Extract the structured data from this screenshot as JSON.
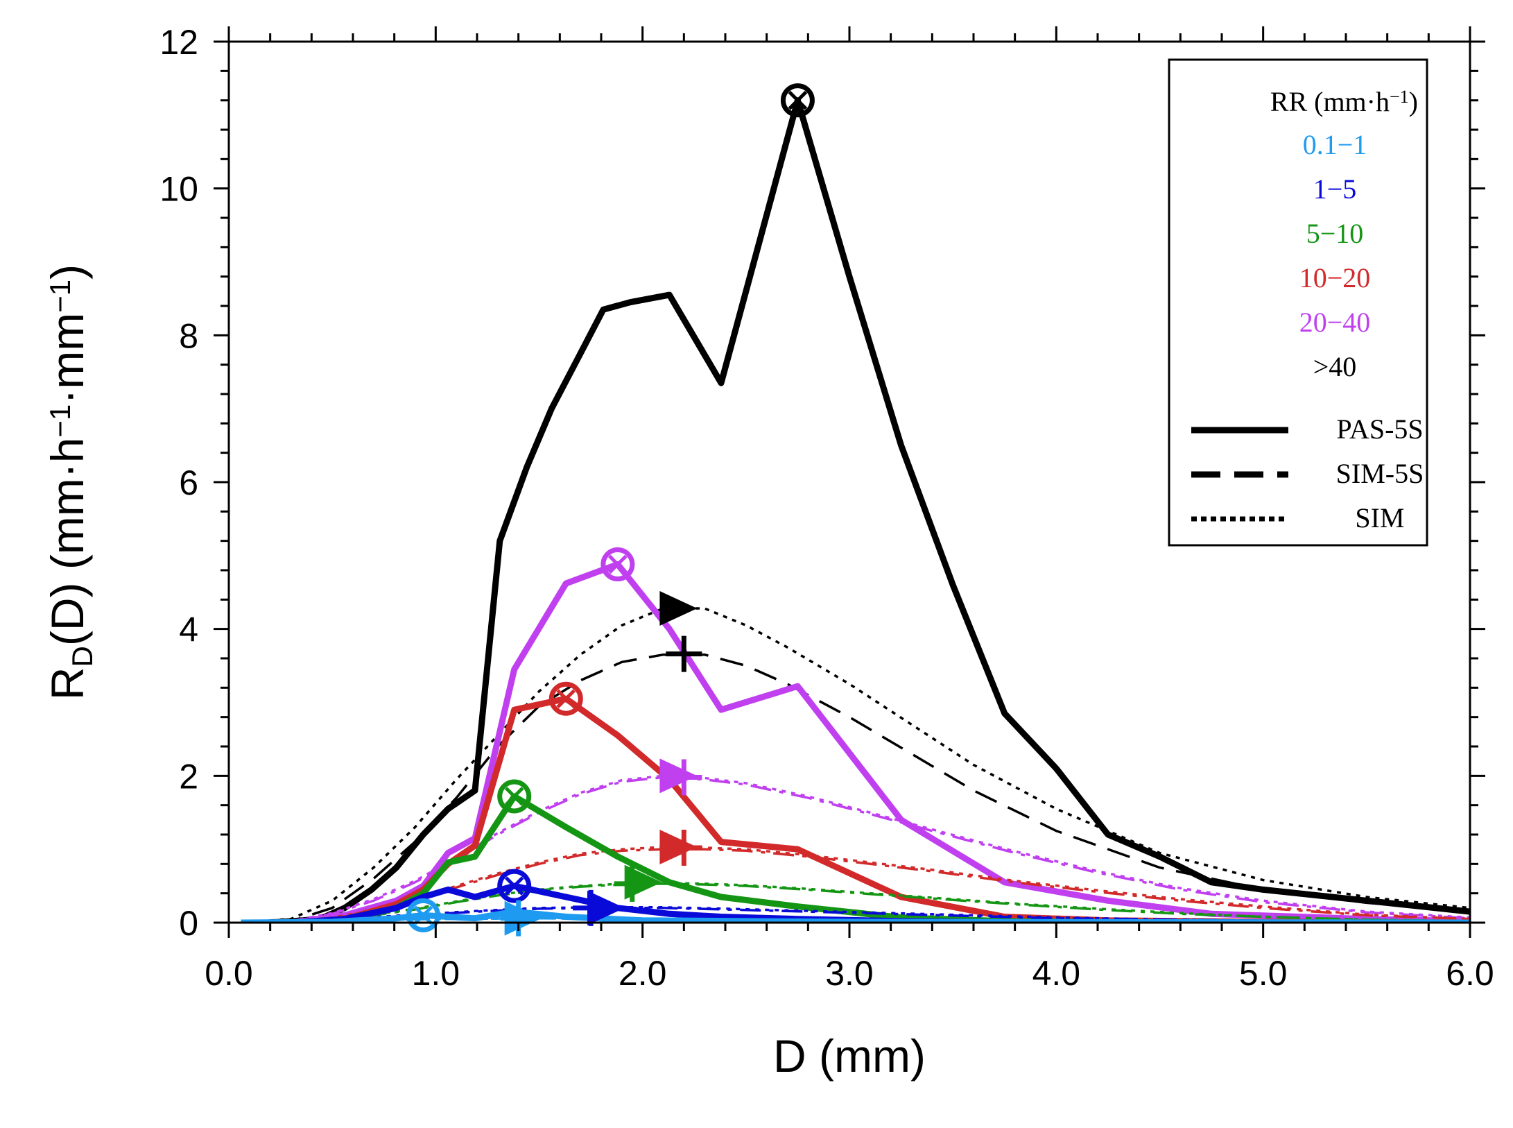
{
  "chart_data": {
    "type": "line",
    "title": "",
    "xlabel": "D (mm)",
    "ylabel_parts": [
      "R",
      "D",
      "(D) (mm·h",
      "−1",
      "·mm",
      "−1",
      ")"
    ],
    "xlim": [
      0,
      6
    ],
    "ylim": [
      0,
      12
    ],
    "x_ticks": [
      0,
      1,
      2,
      3,
      4,
      5,
      6
    ],
    "x_tick_labels": [
      "0.0",
      "1.0",
      "2.0",
      "3.0",
      "4.0",
      "5.0",
      "6.0"
    ],
    "y_ticks": [
      0,
      2,
      4,
      6,
      8,
      10,
      12
    ],
    "y_tick_labels": [
      "0",
      "2",
      "4",
      "6",
      "8",
      "10",
      "12"
    ],
    "grid": false,
    "legend": {
      "title": "RR (mm·h",
      "title_sup": "−1",
      "title_end": ")",
      "placement": "top-right",
      "classes": [
        {
          "label": "0.1−1",
          "color": "#1e9bf0"
        },
        {
          "label": "1−5",
          "color": "#0a0ad8"
        },
        {
          "label": "5−10",
          "color": "#149614"
        },
        {
          "label": "10−20",
          "color": "#d22a2a"
        },
        {
          "label": "20−40",
          "color": "#c040f0"
        },
        {
          "label": ">40",
          "color": "#000000"
        }
      ],
      "styles": [
        {
          "label": "PAS-5S",
          "dash": "solid"
        },
        {
          "label": "SIM-5S",
          "dash": "dash"
        },
        {
          "label": "SIM",
          "dash": "dot"
        }
      ]
    },
    "series": [
      {
        "name": ">40 PAS-5S",
        "color": "#000000",
        "style": "solid",
        "x": [
          0.06,
          0.19,
          0.31,
          0.44,
          0.56,
          0.69,
          0.81,
          0.94,
          1.06,
          1.19,
          1.31,
          1.44,
          1.56,
          1.69,
          1.81,
          1.94,
          2.13,
          2.38,
          2.75,
          3.0,
          3.25,
          3.5,
          3.75,
          4.0,
          4.25,
          4.5,
          4.75,
          5.0,
          5.5,
          6.0
        ],
        "y": [
          0,
          0,
          0.02,
          0.05,
          0.2,
          0.45,
          0.75,
          1.2,
          1.55,
          1.8,
          5.2,
          6.2,
          7.0,
          7.7,
          8.35,
          8.45,
          8.55,
          7.35,
          11.2,
          8.8,
          6.5,
          4.6,
          2.85,
          2.1,
          1.2,
          0.9,
          0.55,
          0.45,
          0.3,
          0.15
        ]
      },
      {
        "name": ">40 SIM-5S",
        "color": "#000000",
        "style": "dash",
        "x": [
          0.06,
          0.3,
          0.5,
          0.7,
          0.9,
          1.1,
          1.3,
          1.5,
          1.7,
          1.9,
          2.1,
          2.3,
          2.5,
          2.7,
          3.0,
          3.3,
          3.6,
          4.0,
          4.5,
          5.0,
          5.5,
          6.0
        ],
        "y": [
          0,
          0.02,
          0.2,
          0.6,
          1.1,
          1.7,
          2.4,
          2.95,
          3.3,
          3.55,
          3.65,
          3.65,
          3.5,
          3.25,
          2.8,
          2.3,
          1.8,
          1.25,
          0.75,
          0.45,
          0.27,
          0.15
        ]
      },
      {
        "name": ">40 SIM",
        "color": "#000000",
        "style": "dot",
        "x": [
          0.06,
          0.3,
          0.5,
          0.7,
          0.9,
          1.1,
          1.3,
          1.5,
          1.7,
          1.9,
          2.1,
          2.3,
          2.5,
          2.7,
          3.0,
          3.3,
          3.6,
          4.0,
          4.5,
          5.0,
          5.5,
          6.0
        ],
        "y": [
          0,
          0.05,
          0.3,
          0.75,
          1.3,
          1.95,
          2.55,
          3.15,
          3.65,
          4.05,
          4.28,
          4.28,
          4.05,
          3.75,
          3.25,
          2.7,
          2.15,
          1.55,
          0.95,
          0.58,
          0.35,
          0.2
        ]
      },
      {
        "name": "20-40 PAS-5S",
        "color": "#c040f0",
        "style": "solid",
        "x": [
          0.06,
          0.31,
          0.56,
          0.81,
          0.94,
          1.06,
          1.19,
          1.38,
          1.63,
          1.88,
          2.13,
          2.38,
          2.75,
          3.25,
          3.75,
          4.25,
          4.75,
          5.5,
          6.0
        ],
        "y": [
          0,
          0,
          0.1,
          0.3,
          0.5,
          0.95,
          1.15,
          3.45,
          4.62,
          4.88,
          4.0,
          2.9,
          3.22,
          1.4,
          0.55,
          0.3,
          0.12,
          0.05,
          0.02
        ]
      },
      {
        "name": "20-40 SIM-5S",
        "color": "#c040f0",
        "style": "dashdot",
        "x": [
          0.06,
          0.3,
          0.5,
          0.7,
          0.9,
          1.1,
          1.3,
          1.5,
          1.7,
          1.9,
          2.1,
          2.3,
          2.5,
          2.8,
          3.1,
          3.4,
          3.8,
          4.2,
          4.6,
          5.0,
          5.5,
          6.0
        ],
        "y": [
          0,
          0.02,
          0.12,
          0.3,
          0.55,
          0.85,
          1.2,
          1.5,
          1.75,
          1.92,
          1.98,
          1.95,
          1.88,
          1.7,
          1.48,
          1.25,
          0.95,
          0.68,
          0.45,
          0.28,
          0.14,
          0.06
        ]
      },
      {
        "name": "20-40 SIM",
        "color": "#c040f0",
        "style": "dot",
        "x": [
          0.06,
          0.3,
          0.5,
          0.7,
          0.9,
          1.1,
          1.3,
          1.5,
          1.7,
          1.9,
          2.1,
          2.3,
          2.5,
          2.8,
          3.1,
          3.4,
          3.8,
          4.2,
          4.6,
          5.0,
          5.5,
          6.0
        ],
        "y": [
          0,
          0.02,
          0.13,
          0.32,
          0.57,
          0.88,
          1.22,
          1.52,
          1.77,
          1.94,
          2.0,
          1.97,
          1.9,
          1.72,
          1.5,
          1.27,
          0.97,
          0.7,
          0.47,
          0.3,
          0.15,
          0.07
        ]
      },
      {
        "name": "10-20 PAS-5S",
        "color": "#d22a2a",
        "style": "solid",
        "x": [
          0.06,
          0.31,
          0.56,
          0.81,
          0.94,
          1.06,
          1.19,
          1.38,
          1.63,
          1.88,
          2.13,
          2.38,
          2.75,
          3.25,
          3.75,
          4.25,
          5.0,
          6.0
        ],
        "y": [
          0,
          0,
          0.05,
          0.25,
          0.45,
          0.8,
          1.05,
          2.9,
          3.05,
          2.55,
          1.95,
          1.1,
          1.0,
          0.35,
          0.08,
          0.03,
          0.01,
          0
        ]
      },
      {
        "name": "10-20 SIM-5S",
        "color": "#d22a2a",
        "style": "dashdot",
        "x": [
          0.06,
          0.3,
          0.5,
          0.7,
          0.9,
          1.1,
          1.3,
          1.5,
          1.7,
          1.9,
          2.1,
          2.3,
          2.5,
          2.8,
          3.1,
          3.4,
          3.8,
          4.2,
          4.6,
          5.0,
          5.5,
          6.0
        ],
        "y": [
          0,
          0.01,
          0.06,
          0.15,
          0.3,
          0.48,
          0.65,
          0.8,
          0.92,
          0.98,
          1.0,
          1.0,
          0.98,
          0.9,
          0.8,
          0.7,
          0.55,
          0.42,
          0.3,
          0.2,
          0.1,
          0.05
        ]
      },
      {
        "name": "10-20 SIM",
        "color": "#d22a2a",
        "style": "dot",
        "x": [
          0.06,
          0.3,
          0.5,
          0.7,
          0.9,
          1.1,
          1.3,
          1.5,
          1.7,
          1.9,
          2.1,
          2.3,
          2.5,
          2.8,
          3.1,
          3.4,
          3.8,
          4.2,
          4.6,
          5.0,
          5.5,
          6.0
        ],
        "y": [
          0,
          0.01,
          0.07,
          0.17,
          0.32,
          0.5,
          0.67,
          0.82,
          0.94,
          1.0,
          1.03,
          1.02,
          1.0,
          0.92,
          0.82,
          0.72,
          0.57,
          0.44,
          0.32,
          0.22,
          0.11,
          0.05
        ]
      },
      {
        "name": "5-10 PAS-5S",
        "color": "#149614",
        "style": "solid",
        "x": [
          0.06,
          0.31,
          0.56,
          0.81,
          0.94,
          1.06,
          1.19,
          1.38,
          1.63,
          1.88,
          2.13,
          2.38,
          2.75,
          3.25,
          3.75,
          4.5,
          6.0
        ],
        "y": [
          0,
          0,
          0.05,
          0.2,
          0.4,
          0.82,
          0.9,
          1.72,
          1.3,
          0.9,
          0.55,
          0.35,
          0.22,
          0.07,
          0.02,
          0,
          0
        ]
      },
      {
        "name": "5-10 SIM-5S",
        "color": "#149614",
        "style": "dashdot",
        "x": [
          0.06,
          0.3,
          0.5,
          0.7,
          0.9,
          1.1,
          1.3,
          1.5,
          1.7,
          1.9,
          2.1,
          2.3,
          2.5,
          2.8,
          3.1,
          3.4,
          3.8,
          4.2,
          4.6,
          5.0,
          5.5,
          6.0
        ],
        "y": [
          0,
          0.01,
          0.04,
          0.1,
          0.18,
          0.28,
          0.37,
          0.44,
          0.49,
          0.52,
          0.53,
          0.52,
          0.5,
          0.45,
          0.39,
          0.33,
          0.25,
          0.18,
          0.12,
          0.08,
          0.04,
          0.02
        ]
      },
      {
        "name": "5-10 SIM",
        "color": "#149614",
        "style": "dot",
        "x": [
          0.06,
          0.3,
          0.5,
          0.7,
          0.9,
          1.1,
          1.3,
          1.5,
          1.7,
          1.9,
          2.1,
          2.3,
          2.5,
          2.8,
          3.1,
          3.4,
          3.8,
          4.2,
          4.6,
          5.0,
          5.5,
          6.0
        ],
        "y": [
          0,
          0.01,
          0.04,
          0.11,
          0.19,
          0.29,
          0.38,
          0.45,
          0.5,
          0.53,
          0.54,
          0.53,
          0.51,
          0.46,
          0.4,
          0.34,
          0.26,
          0.19,
          0.13,
          0.08,
          0.04,
          0.02
        ]
      },
      {
        "name": "1-5 PAS-5S",
        "color": "#0a0ad8",
        "style": "solid",
        "x": [
          0.06,
          0.31,
          0.56,
          0.81,
          0.94,
          1.06,
          1.19,
          1.38,
          1.63,
          1.88,
          2.13,
          2.38,
          2.75,
          3.25,
          4.0,
          6.0
        ],
        "y": [
          0,
          0,
          0.05,
          0.2,
          0.35,
          0.45,
          0.35,
          0.5,
          0.35,
          0.2,
          0.12,
          0.08,
          0.05,
          0.02,
          0,
          0
        ]
      },
      {
        "name": "1-5 SIM-5S",
        "color": "#0a0ad8",
        "style": "dashdot",
        "x": [
          0.06,
          0.3,
          0.6,
          0.9,
          1.2,
          1.5,
          1.8,
          2.1,
          2.4,
          2.8,
          3.2,
          3.6,
          4.0,
          4.6,
          5.2,
          6.0
        ],
        "y": [
          0,
          0.01,
          0.05,
          0.1,
          0.15,
          0.19,
          0.2,
          0.2,
          0.18,
          0.15,
          0.12,
          0.09,
          0.06,
          0.04,
          0.02,
          0.01
        ]
      },
      {
        "name": "1-5 SIM",
        "color": "#0a0ad8",
        "style": "dot",
        "x": [
          0.06,
          0.3,
          0.6,
          0.9,
          1.2,
          1.5,
          1.8,
          2.1,
          2.4,
          2.8,
          3.2,
          3.6,
          4.0,
          4.6,
          5.2,
          6.0
        ],
        "y": [
          0,
          0.01,
          0.06,
          0.11,
          0.16,
          0.2,
          0.21,
          0.21,
          0.19,
          0.16,
          0.13,
          0.1,
          0.07,
          0.04,
          0.02,
          0.01
        ]
      },
      {
        "name": "0.1-1 PAS-5S",
        "color": "#1e9bf0",
        "style": "solid",
        "x": [
          0.06,
          0.5,
          0.81,
          0.94,
          1.06,
          1.19,
          1.38,
          1.63,
          2.0,
          3.0,
          6.0
        ],
        "y": [
          0,
          0.01,
          0.06,
          0.1,
          0.08,
          0.06,
          0.15,
          0.08,
          0.03,
          0.01,
          0
        ]
      },
      {
        "name": "0.1-1 SIM-5S",
        "color": "#1e9bf0",
        "style": "dashdot",
        "x": [
          0.06,
          0.5,
          1.0,
          1.5,
          2.0,
          2.5,
          3.0,
          4.0,
          6.0
        ],
        "y": [
          0,
          0.02,
          0.05,
          0.06,
          0.05,
          0.04,
          0.03,
          0.01,
          0
        ]
      },
      {
        "name": "0.1-1 SIM",
        "color": "#1e9bf0",
        "style": "dot",
        "x": [
          0.06,
          0.5,
          1.0,
          1.5,
          2.0,
          2.5,
          3.0,
          4.0,
          6.0
        ],
        "y": [
          0,
          0.02,
          0.05,
          0.06,
          0.05,
          0.04,
          0.03,
          0.01,
          0
        ]
      }
    ],
    "markers": [
      {
        "kind": "circle-x",
        "x": 2.75,
        "y": 11.2,
        "color": "#000000"
      },
      {
        "kind": "circle-x",
        "x": 1.88,
        "y": 4.88,
        "color": "#c040f0"
      },
      {
        "kind": "circle-x",
        "x": 1.63,
        "y": 3.05,
        "color": "#d22a2a"
      },
      {
        "kind": "circle-x",
        "x": 1.38,
        "y": 1.72,
        "color": "#149614"
      },
      {
        "kind": "circle-x",
        "x": 1.38,
        "y": 0.5,
        "color": "#0a0ad8"
      },
      {
        "kind": "circle-x",
        "x": 0.94,
        "y": 0.1,
        "color": "#1e9bf0"
      },
      {
        "kind": "triangle",
        "x": 2.15,
        "y": 4.28,
        "color": "#000000"
      },
      {
        "kind": "plus",
        "x": 2.2,
        "y": 3.66,
        "color": "#000000"
      },
      {
        "kind": "triangle",
        "x": 2.15,
        "y": 2.0,
        "color": "#c040f0"
      },
      {
        "kind": "plus",
        "x": 2.2,
        "y": 1.98,
        "color": "#c040f0"
      },
      {
        "kind": "triangle",
        "x": 2.15,
        "y": 1.03,
        "color": "#d22a2a"
      },
      {
        "kind": "plus",
        "x": 2.2,
        "y": 1.02,
        "color": "#d22a2a"
      },
      {
        "kind": "triangle",
        "x": 1.98,
        "y": 0.55,
        "color": "#149614"
      },
      {
        "kind": "plus",
        "x": 1.95,
        "y": 0.53,
        "color": "#149614"
      },
      {
        "kind": "triangle",
        "x": 1.8,
        "y": 0.2,
        "color": "#0a0ad8"
      },
      {
        "kind": "plus",
        "x": 1.75,
        "y": 0.2,
        "color": "#0a0ad8"
      },
      {
        "kind": "triangle",
        "x": 1.4,
        "y": 0.06,
        "color": "#1e9bf0"
      },
      {
        "kind": "plus",
        "x": 1.4,
        "y": 0.06,
        "color": "#1e9bf0"
      }
    ]
  }
}
